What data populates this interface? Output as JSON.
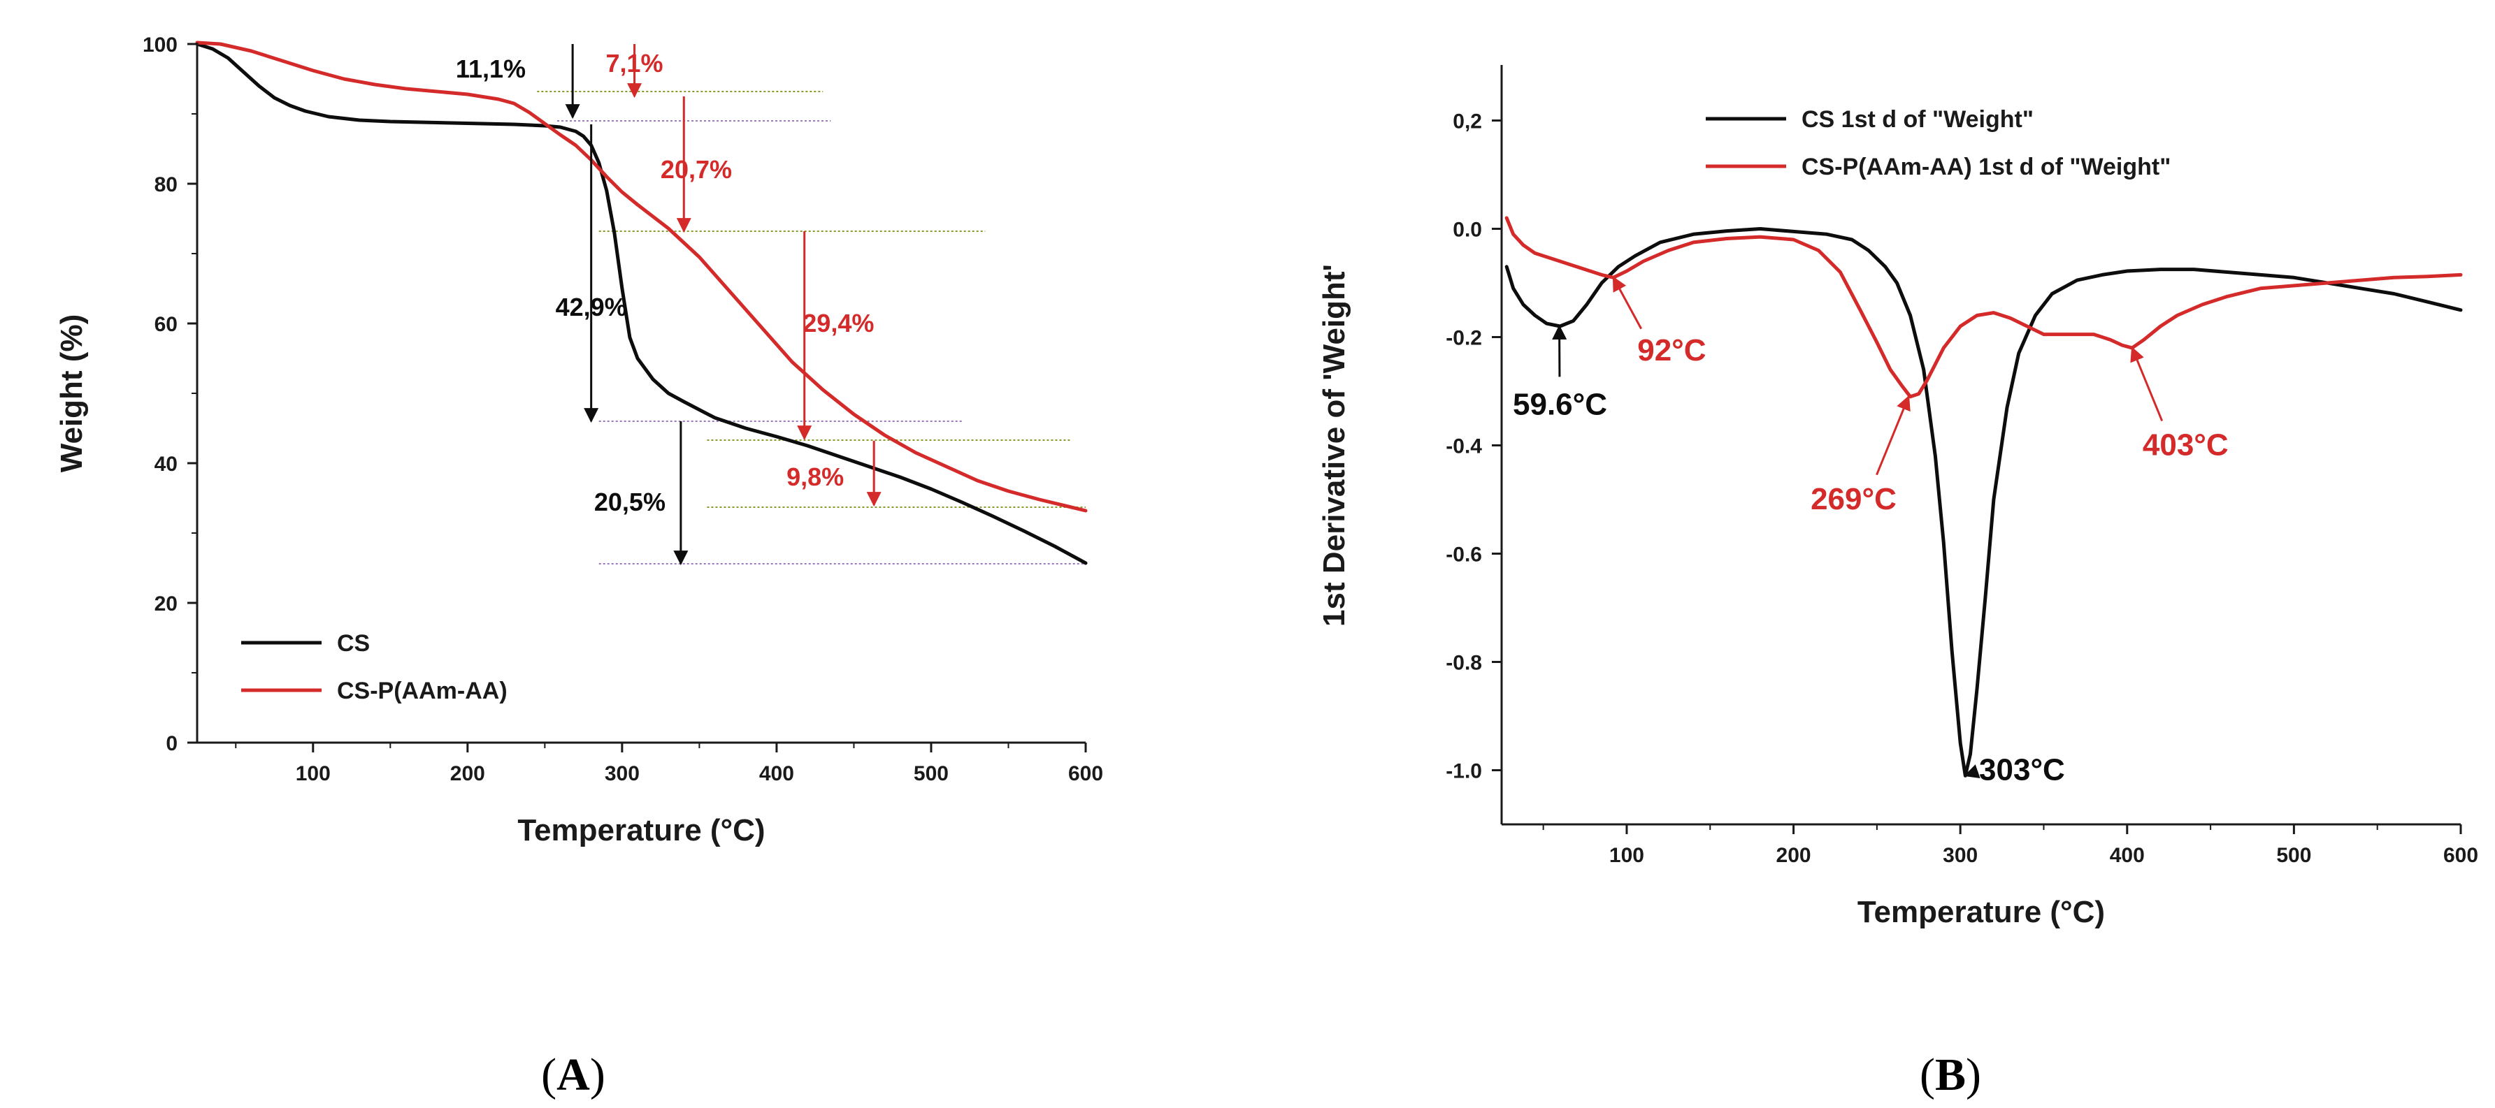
{
  "colors": {
    "cs": "#0d0d0d",
    "copolymer": "#d42a2a",
    "guide_green": "#8a9a2a",
    "guide_purple": "#9a7abf"
  },
  "chart_data": [
    {
      "id": "A",
      "type": "line",
      "panel_label": {
        "open": "(",
        "letter": "A",
        "close": ")"
      },
      "xlabel": "Temperature (°C)",
      "ylabel": "Weight (%)",
      "xlim": [
        25,
        600
      ],
      "ylim": [
        0,
        100
      ],
      "xticks": [
        100,
        200,
        300,
        400,
        500,
        600
      ],
      "yticks": [
        0,
        20,
        40,
        60,
        80,
        100
      ],
      "legend": {
        "position": "bottom-left"
      },
      "series": [
        {
          "name": "CS",
          "color_key": "cs",
          "x": [
            25,
            35,
            45,
            55,
            65,
            75,
            85,
            95,
            110,
            130,
            150,
            170,
            190,
            210,
            230,
            250,
            260,
            270,
            275,
            280,
            285,
            290,
            295,
            300,
            305,
            310,
            320,
            330,
            340,
            360,
            380,
            400,
            420,
            440,
            460,
            480,
            500,
            520,
            540,
            560,
            580,
            600
          ],
          "y": [
            100,
            99.3,
            98,
            96,
            94,
            92.3,
            91.2,
            90.4,
            89.6,
            89.1,
            88.9,
            88.8,
            88.7,
            88.6,
            88.5,
            88.3,
            88.1,
            87.5,
            86.8,
            85.5,
            83,
            79,
            73,
            65,
            58,
            55,
            52,
            50,
            48.8,
            46.5,
            45,
            43.8,
            42.5,
            41,
            39.5,
            38,
            36.3,
            34.4,
            32.4,
            30.3,
            28.1,
            25.7
          ]
        },
        {
          "name": "CS-P(AAm-AA)",
          "color_key": "copolymer",
          "x": [
            25,
            40,
            60,
            80,
            100,
            120,
            140,
            160,
            180,
            200,
            220,
            230,
            240,
            250,
            260,
            270,
            280,
            290,
            300,
            310,
            330,
            350,
            370,
            390,
            410,
            430,
            450,
            470,
            490,
            510,
            530,
            550,
            570,
            600
          ],
          "y": [
            100.2,
            100,
            99,
            97.6,
            96.2,
            95,
            94.2,
            93.6,
            93.2,
            92.8,
            92.1,
            91.5,
            90.2,
            88.6,
            87,
            85.5,
            83.4,
            81,
            78.8,
            77,
            73.6,
            69.5,
            64.5,
            59.5,
            54.5,
            50.5,
            47,
            44,
            41.5,
            39.5,
            37.5,
            36,
            34.8,
            33.2
          ]
        }
      ],
      "annotations": [
        {
          "text": "11,1%",
          "color_key": "cs",
          "x": 215,
          "y": 96.6
        },
        {
          "text": "7,1%",
          "color_key": "copolymer",
          "x": 308,
          "y": 97.4
        },
        {
          "text": "20,7%",
          "color_key": "copolymer",
          "x": 348,
          "y": 82.2
        },
        {
          "text": "42,9%",
          "color_key": "cs",
          "x": 280,
          "y": 62.5
        },
        {
          "text": "29,4%",
          "color_key": "copolymer",
          "x": 440,
          "y": 60.2
        },
        {
          "text": "20,5%",
          "color_key": "cs",
          "x": 305,
          "y": 34.6
        },
        {
          "text": "9,8%",
          "color_key": "copolymer",
          "x": 425,
          "y": 38.2
        }
      ],
      "arrows": [
        {
          "color_key": "cs",
          "x": 268,
          "y1": 100,
          "y2": 89.5
        },
        {
          "color_key": "copolymer",
          "x": 308,
          "y1": 100,
          "y2": 92.5
        },
        {
          "color_key": "copolymer",
          "x": 340,
          "y1": 92.5,
          "y2": 73.2
        },
        {
          "color_key": "cs",
          "x": 280,
          "y1": 88.5,
          "y2": 46
        },
        {
          "color_key": "copolymer",
          "x": 418,
          "y1": 73.2,
          "y2": 43.5
        },
        {
          "color_key": "cs",
          "x": 338,
          "y1": 46,
          "y2": 25.6
        },
        {
          "color_key": "copolymer",
          "x": 463,
          "y1": 43.2,
          "y2": 34
        }
      ],
      "guides": [
        {
          "color_key": "guide_green",
          "x1": 245,
          "x2": 430,
          "y": 93.2
        },
        {
          "color_key": "guide_purple",
          "x1": 258,
          "x2": 435,
          "y": 89
        },
        {
          "color_key": "guide_green",
          "x1": 285,
          "x2": 535,
          "y": 73.2
        },
        {
          "color_key": "guide_purple",
          "x1": 285,
          "x2": 520,
          "y": 46
        },
        {
          "color_key": "guide_green",
          "x1": 355,
          "x2": 590,
          "y": 43.3
        },
        {
          "color_key": "guide_green",
          "x1": 355,
          "x2": 600,
          "y": 33.7
        },
        {
          "color_key": "guide_purple",
          "x1": 285,
          "x2": 600,
          "y": 25.6
        }
      ]
    },
    {
      "id": "B",
      "type": "line",
      "panel_label": {
        "open": "(",
        "letter": "B",
        "close": ")"
      },
      "xlabel": "Temperature (°C)",
      "ylabel": "1st Derivative of 'Weight'",
      "xlim": [
        25,
        600
      ],
      "ylim": [
        -1.1,
        0.3
      ],
      "xticks": [
        100,
        200,
        300,
        400,
        500,
        600
      ],
      "yticks": [
        0.2,
        0.0,
        -0.2,
        -0.4,
        -0.6,
        -0.8,
        -1.0
      ],
      "ytick_labels": [
        "0,2",
        "0.0",
        "-0.2",
        "-0.4",
        "-0.6",
        "-0.8",
        "-1.0"
      ],
      "legend": {
        "position": "top-left"
      },
      "series": [
        {
          "name": "CS 1st d of \"Weight\"",
          "color_key": "cs",
          "x": [
            28,
            32,
            38,
            45,
            52,
            60,
            68,
            76,
            85,
            95,
            105,
            120,
            140,
            160,
            180,
            200,
            220,
            235,
            245,
            255,
            262,
            270,
            278,
            285,
            290,
            295,
            300,
            303,
            306,
            310,
            315,
            320,
            328,
            335,
            345,
            355,
            370,
            385,
            400,
            420,
            440,
            460,
            480,
            500,
            520,
            540,
            560,
            580,
            600
          ],
          "y": [
            -0.07,
            -0.11,
            -0.14,
            -0.16,
            -0.175,
            -0.18,
            -0.17,
            -0.14,
            -0.1,
            -0.07,
            -0.05,
            -0.025,
            -0.01,
            -0.004,
            0.0,
            -0.005,
            -0.01,
            -0.02,
            -0.04,
            -0.07,
            -0.1,
            -0.16,
            -0.26,
            -0.42,
            -0.58,
            -0.78,
            -0.95,
            -1.01,
            -0.97,
            -0.85,
            -0.68,
            -0.5,
            -0.33,
            -0.23,
            -0.16,
            -0.12,
            -0.095,
            -0.085,
            -0.078,
            -0.075,
            -0.075,
            -0.08,
            -0.085,
            -0.09,
            -0.1,
            -0.11,
            -0.12,
            -0.135,
            -0.15
          ]
        },
        {
          "name": "CS-P(AAm-AA) 1st d of \"Weight\"",
          "color_key": "copolymer",
          "x": [
            28,
            32,
            38,
            45,
            55,
            65,
            75,
            85,
            92,
            100,
            110,
            125,
            140,
            160,
            180,
            200,
            215,
            228,
            240,
            250,
            258,
            265,
            270,
            275,
            280,
            290,
            300,
            310,
            320,
            330,
            340,
            350,
            360,
            370,
            380,
            390,
            397,
            403,
            410,
            420,
            430,
            445,
            460,
            480,
            500,
            520,
            540,
            560,
            580,
            600
          ],
          "y": [
            0.02,
            -0.01,
            -0.03,
            -0.045,
            -0.055,
            -0.065,
            -0.075,
            -0.085,
            -0.09,
            -0.078,
            -0.06,
            -0.04,
            -0.025,
            -0.018,
            -0.015,
            -0.02,
            -0.04,
            -0.08,
            -0.15,
            -0.21,
            -0.26,
            -0.29,
            -0.31,
            -0.305,
            -0.28,
            -0.22,
            -0.18,
            -0.16,
            -0.155,
            -0.165,
            -0.18,
            -0.195,
            -0.195,
            -0.195,
            -0.195,
            -0.205,
            -0.215,
            -0.22,
            -0.205,
            -0.18,
            -0.16,
            -0.14,
            -0.125,
            -0.11,
            -0.105,
            -0.1,
            -0.095,
            -0.09,
            -0.088,
            -0.085
          ]
        }
      ],
      "annotations": [
        {
          "text": "92°C",
          "color_key": "copolymer",
          "x": 127,
          "y": -0.225,
          "arrow_to": [
            92,
            -0.09
          ]
        },
        {
          "text": "59.6°C",
          "color_key": "cs",
          "x": 60,
          "y": -0.325,
          "arrow_to": [
            59.6,
            -0.18
          ]
        },
        {
          "text": "269°C",
          "color_key": "copolymer",
          "x": 236,
          "y": -0.5,
          "arrow_to": [
            269,
            -0.31
          ]
        },
        {
          "text": "403°C",
          "color_key": "copolymer",
          "x": 435,
          "y": -0.4,
          "arrow_to": [
            403,
            -0.22
          ]
        },
        {
          "text": "303°C",
          "color_key": "cs",
          "x": 337,
          "y": -1.0,
          "arrow_to": [
            303,
            -1.01
          ]
        }
      ]
    }
  ]
}
